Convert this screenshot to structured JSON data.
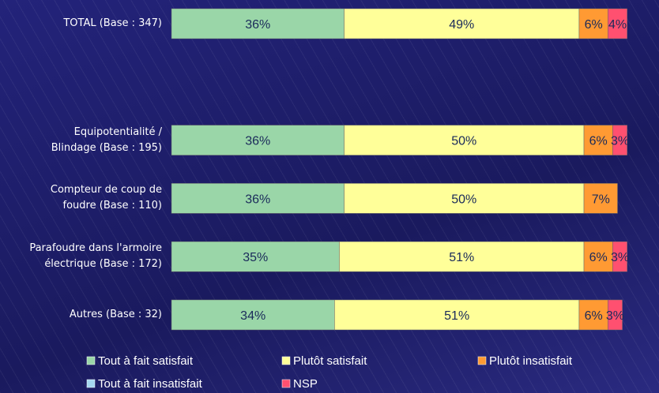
{
  "chart_data": {
    "type": "stacked-barh",
    "categories": [
      "TOTAL (Base : 347)",
      null,
      "Equipotentialité /\nBlindage (Base : 195)",
      "Compteur de coup de\nfoudre (Base : 110)",
      "Parafoudre dans l'armoire\nélectrique (Base : 172)",
      "Autres (Base : 32)"
    ],
    "series": [
      {
        "name": "Tout à fait satisfait",
        "color": "#9ad6a8",
        "values": [
          36,
          null,
          36,
          36,
          35,
          34
        ],
        "value_labels": [
          "36%",
          null,
          "36%",
          "36%",
          "35%",
          "34%"
        ]
      },
      {
        "name": "Plutôt satisfait",
        "color": "#ffff99",
        "values": [
          49,
          null,
          50,
          50,
          51,
          51
        ],
        "value_labels": [
          "49%",
          null,
          "50%",
          "50%",
          "51%",
          "51%"
        ]
      },
      {
        "name": "Plutôt insatisfait",
        "color": "#ff9a33",
        "values": [
          6,
          null,
          6,
          7,
          6,
          6
        ],
        "value_labels": [
          "6%",
          null,
          "6%",
          "7%",
          "6%",
          "6%"
        ]
      },
      {
        "name": "Tout à fait insatisfait",
        "color": "#a6d8f0",
        "values": [
          0,
          null,
          0,
          0,
          0,
          0
        ]
      },
      {
        "name": "NSP",
        "color": "#ff5070",
        "values": [
          4,
          null,
          3,
          null,
          3,
          3
        ],
        "value_labels": [
          "4%",
          null,
          "3%",
          null,
          "3%",
          "3%"
        ]
      }
    ],
    "xlim": [
      0,
      100
    ],
    "legend": "bottom"
  }
}
